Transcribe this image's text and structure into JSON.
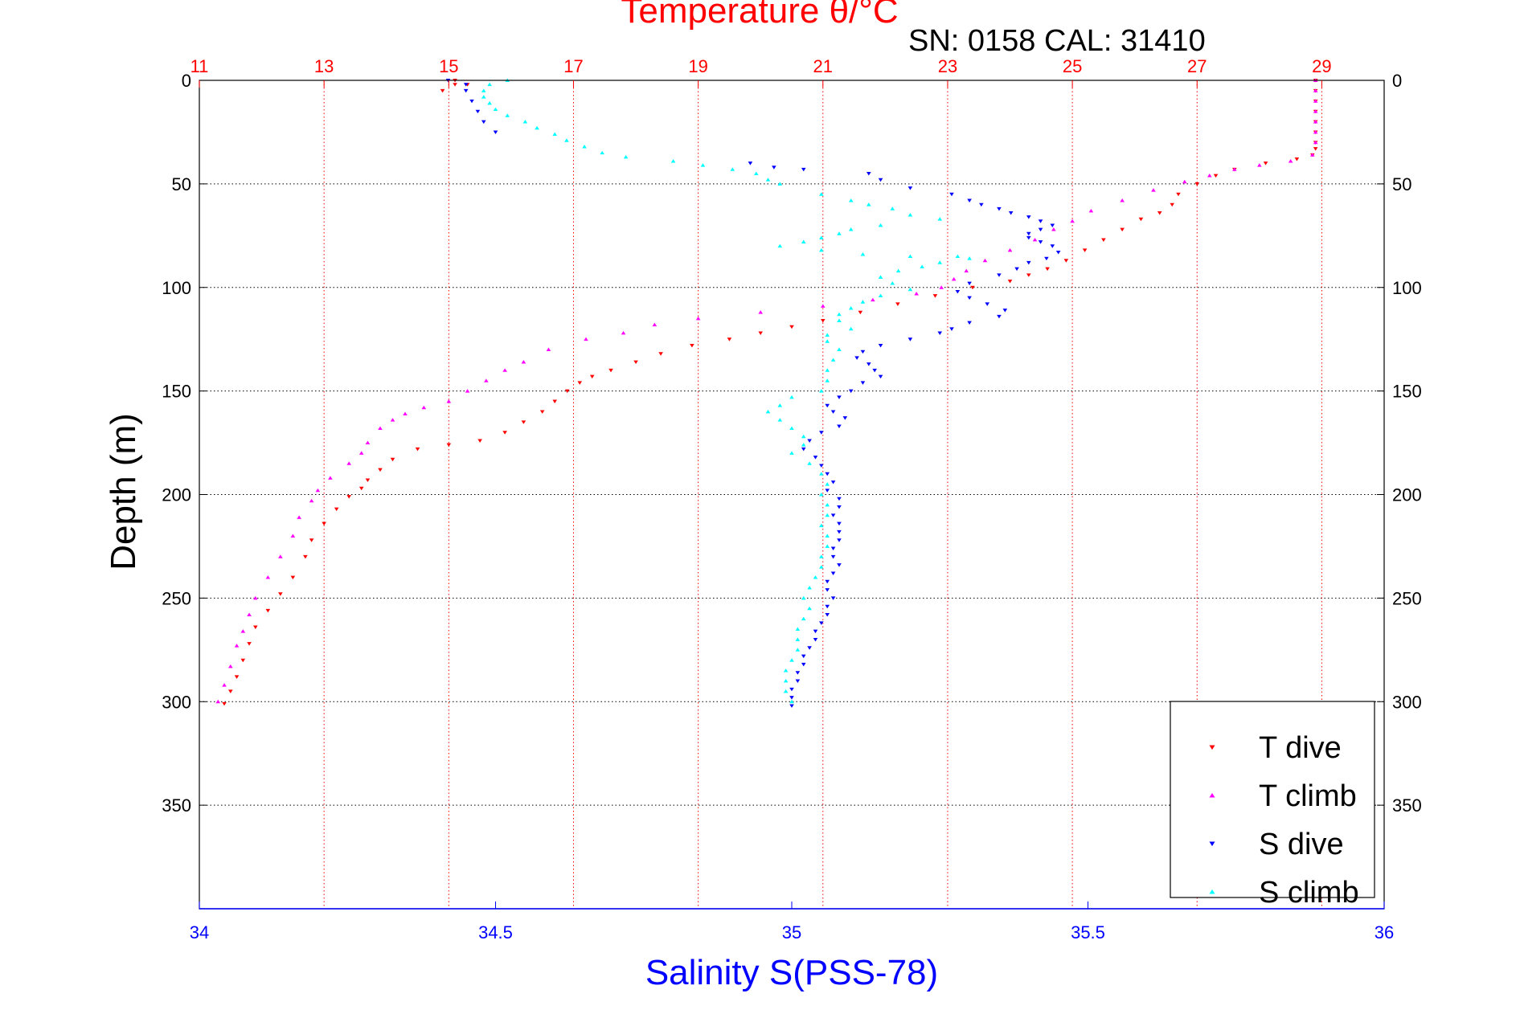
{
  "chart_data": {
    "type": "scatter",
    "title": "Temperature θ/°C",
    "subtitle": "SN: 0158  CAL: 31410",
    "ylabel": "Depth (m)",
    "xlabel_bottom": "Salinity S(PSS-78)",
    "ylim": [
      0,
      400
    ],
    "y_reversed": true,
    "y_ticks": [
      0,
      50,
      100,
      150,
      200,
      250,
      300,
      350
    ],
    "x_top": {
      "range": [
        11,
        30
      ],
      "ticks": [
        11,
        13,
        15,
        17,
        19,
        21,
        23,
        25,
        27,
        29
      ],
      "color": "#ff0000"
    },
    "x_bottom": {
      "range": [
        34,
        36
      ],
      "ticks": [
        34,
        34.5,
        35,
        35.5,
        36
      ],
      "color": "#0000ff"
    },
    "grid": true,
    "legend_position": "bottom-right",
    "series": [
      {
        "name": "T dive",
        "axis": "top",
        "color": "#ff0000",
        "marker": "triangle-down",
        "points": [
          [
            15.1,
            0
          ],
          [
            15.1,
            2
          ],
          [
            14.9,
            5
          ],
          [
            15.3,
            2
          ],
          [
            28.9,
            0
          ],
          [
            28.9,
            5
          ],
          [
            28.9,
            10
          ],
          [
            28.9,
            15
          ],
          [
            28.9,
            20
          ],
          [
            28.9,
            25
          ],
          [
            28.9,
            30
          ],
          [
            28.9,
            33
          ],
          [
            28.85,
            36
          ],
          [
            28.6,
            38
          ],
          [
            28.1,
            40
          ],
          [
            27.6,
            43
          ],
          [
            27.3,
            46
          ],
          [
            27.0,
            50
          ],
          [
            26.7,
            55
          ],
          [
            26.6,
            60
          ],
          [
            26.4,
            64
          ],
          [
            26.1,
            67
          ],
          [
            25.8,
            72
          ],
          [
            25.5,
            77
          ],
          [
            25.2,
            82
          ],
          [
            24.9,
            87
          ],
          [
            24.6,
            91
          ],
          [
            24.3,
            94
          ],
          [
            24.0,
            97
          ],
          [
            23.4,
            100
          ],
          [
            22.8,
            104
          ],
          [
            22.2,
            108
          ],
          [
            21.6,
            112
          ],
          [
            21.0,
            116
          ],
          [
            20.5,
            119
          ],
          [
            20.0,
            122
          ],
          [
            19.5,
            125
          ],
          [
            18.9,
            128
          ],
          [
            18.4,
            132
          ],
          [
            18.0,
            136
          ],
          [
            17.6,
            140
          ],
          [
            17.3,
            143
          ],
          [
            17.1,
            146
          ],
          [
            16.9,
            150
          ],
          [
            16.7,
            155
          ],
          [
            16.5,
            160
          ],
          [
            16.2,
            165
          ],
          [
            15.9,
            170
          ],
          [
            15.5,
            174
          ],
          [
            15.0,
            176
          ],
          [
            14.5,
            178
          ],
          [
            14.1,
            183
          ],
          [
            13.9,
            188
          ],
          [
            13.7,
            193
          ],
          [
            13.6,
            197
          ],
          [
            13.4,
            201
          ],
          [
            13.2,
            207
          ],
          [
            13.0,
            214
          ],
          [
            12.8,
            222
          ],
          [
            12.7,
            230
          ],
          [
            12.5,
            240
          ],
          [
            12.3,
            248
          ],
          [
            12.1,
            256
          ],
          [
            11.9,
            264
          ],
          [
            11.8,
            272
          ],
          [
            11.7,
            280
          ],
          [
            11.6,
            288
          ],
          [
            11.5,
            295
          ],
          [
            11.4,
            301
          ]
        ]
      },
      {
        "name": "T climb",
        "axis": "top",
        "color": "#ff00ff",
        "marker": "triangle-up",
        "points": [
          [
            28.9,
            0
          ],
          [
            28.9,
            5
          ],
          [
            28.9,
            10
          ],
          [
            28.9,
            15
          ],
          [
            28.9,
            20
          ],
          [
            28.9,
            25
          ],
          [
            28.9,
            30
          ],
          [
            28.85,
            36
          ],
          [
            28.5,
            39
          ],
          [
            28.0,
            41
          ],
          [
            27.6,
            43
          ],
          [
            27.2,
            46
          ],
          [
            26.8,
            49
          ],
          [
            26.3,
            53
          ],
          [
            25.8,
            58
          ],
          [
            25.3,
            63
          ],
          [
            25.0,
            68
          ],
          [
            24.7,
            72
          ],
          [
            24.4,
            77
          ],
          [
            24.0,
            82
          ],
          [
            23.6,
            87
          ],
          [
            23.3,
            92
          ],
          [
            23.1,
            96
          ],
          [
            22.9,
            100
          ],
          [
            22.5,
            103
          ],
          [
            21.8,
            106
          ],
          [
            21.0,
            109
          ],
          [
            20.0,
            112
          ],
          [
            19.0,
            115
          ],
          [
            18.3,
            118
          ],
          [
            17.8,
            122
          ],
          [
            17.2,
            125
          ],
          [
            16.6,
            130
          ],
          [
            16.2,
            136
          ],
          [
            15.9,
            140
          ],
          [
            15.6,
            145
          ],
          [
            15.3,
            150
          ],
          [
            15.0,
            155
          ],
          [
            14.6,
            158
          ],
          [
            14.3,
            161
          ],
          [
            14.1,
            164
          ],
          [
            13.9,
            168
          ],
          [
            13.7,
            175
          ],
          [
            13.6,
            180
          ],
          [
            13.4,
            185
          ],
          [
            13.1,
            192
          ],
          [
            12.9,
            198
          ],
          [
            12.8,
            203
          ],
          [
            12.6,
            211
          ],
          [
            12.5,
            220
          ],
          [
            12.3,
            230
          ],
          [
            12.1,
            240
          ],
          [
            11.9,
            250
          ],
          [
            11.8,
            258
          ],
          [
            11.7,
            266
          ],
          [
            11.6,
            273
          ],
          [
            11.5,
            283
          ],
          [
            11.4,
            292
          ],
          [
            11.3,
            300
          ]
        ]
      },
      {
        "name": "S dive",
        "axis": "bottom",
        "color": "#0000ff",
        "marker": "triangle-down",
        "points": [
          [
            34.42,
            0
          ],
          [
            34.45,
            2
          ],
          [
            34.45,
            5
          ],
          [
            34.46,
            10
          ],
          [
            34.47,
            15
          ],
          [
            34.48,
            20
          ],
          [
            34.5,
            25
          ],
          [
            34.93,
            40
          ],
          [
            34.97,
            42
          ],
          [
            35.02,
            43
          ],
          [
            35.13,
            45
          ],
          [
            35.15,
            48
          ],
          [
            35.2,
            52
          ],
          [
            35.27,
            55
          ],
          [
            35.3,
            58
          ],
          [
            35.32,
            60
          ],
          [
            35.35,
            62
          ],
          [
            35.37,
            64
          ],
          [
            35.4,
            66
          ],
          [
            35.42,
            68
          ],
          [
            35.44,
            70
          ],
          [
            35.42,
            72
          ],
          [
            35.4,
            74
          ],
          [
            35.4,
            76
          ],
          [
            35.42,
            78
          ],
          [
            35.44,
            80
          ],
          [
            35.45,
            83
          ],
          [
            35.43,
            86
          ],
          [
            35.4,
            88
          ],
          [
            35.38,
            91
          ],
          [
            35.35,
            94
          ],
          [
            35.3,
            98
          ],
          [
            35.28,
            102
          ],
          [
            35.3,
            105
          ],
          [
            35.33,
            108
          ],
          [
            35.36,
            111
          ],
          [
            35.35,
            114
          ],
          [
            35.3,
            117
          ],
          [
            35.27,
            120
          ],
          [
            35.25,
            122
          ],
          [
            35.2,
            125
          ],
          [
            35.15,
            128
          ],
          [
            35.12,
            131
          ],
          [
            35.11,
            134
          ],
          [
            35.13,
            137
          ],
          [
            35.14,
            140
          ],
          [
            35.15,
            143
          ],
          [
            35.12,
            146
          ],
          [
            35.1,
            150
          ],
          [
            35.08,
            153
          ],
          [
            35.06,
            157
          ],
          [
            35.07,
            160
          ],
          [
            35.09,
            163
          ],
          [
            35.08,
            167
          ],
          [
            35.05,
            170
          ],
          [
            35.03,
            174
          ],
          [
            35.02,
            178
          ],
          [
            35.04,
            182
          ],
          [
            35.05,
            186
          ],
          [
            35.06,
            190
          ],
          [
            35.07,
            194
          ],
          [
            35.06,
            198
          ],
          [
            35.08,
            202
          ],
          [
            35.08,
            206
          ],
          [
            35.07,
            210
          ],
          [
            35.08,
            214
          ],
          [
            35.08,
            218
          ],
          [
            35.08,
            222
          ],
          [
            35.07,
            226
          ],
          [
            35.07,
            230
          ],
          [
            35.08,
            234
          ],
          [
            35.07,
            238
          ],
          [
            35.06,
            242
          ],
          [
            35.06,
            246
          ],
          [
            35.07,
            250
          ],
          [
            35.06,
            254
          ],
          [
            35.06,
            258
          ],
          [
            35.05,
            262
          ],
          [
            35.04,
            266
          ],
          [
            35.04,
            270
          ],
          [
            35.03,
            274
          ],
          [
            35.02,
            278
          ],
          [
            35.02,
            282
          ],
          [
            35.01,
            286
          ],
          [
            35.01,
            290
          ],
          [
            35.0,
            294
          ],
          [
            35.0,
            298
          ],
          [
            35.0,
            302
          ]
        ]
      },
      {
        "name": "S climb",
        "axis": "bottom",
        "color": "#00ffff",
        "marker": "triangle-up",
        "points": [
          [
            34.52,
            0
          ],
          [
            34.49,
            2
          ],
          [
            34.48,
            5
          ],
          [
            34.48,
            8
          ],
          [
            34.49,
            11
          ],
          [
            34.5,
            14
          ],
          [
            34.52,
            17
          ],
          [
            34.55,
            20
          ],
          [
            34.57,
            23
          ],
          [
            34.6,
            26
          ],
          [
            34.62,
            29
          ],
          [
            34.65,
            32
          ],
          [
            34.68,
            35
          ],
          [
            34.72,
            37
          ],
          [
            34.8,
            39
          ],
          [
            34.85,
            41
          ],
          [
            34.9,
            43
          ],
          [
            34.94,
            45
          ],
          [
            34.96,
            48
          ],
          [
            34.98,
            50
          ],
          [
            35.05,
            55
          ],
          [
            35.1,
            58
          ],
          [
            35.13,
            60
          ],
          [
            35.17,
            62
          ],
          [
            35.2,
            65
          ],
          [
            35.25,
            67
          ],
          [
            35.15,
            70
          ],
          [
            35.1,
            72
          ],
          [
            35.08,
            74
          ],
          [
            35.05,
            76
          ],
          [
            35.02,
            78
          ],
          [
            34.98,
            80
          ],
          [
            35.05,
            82
          ],
          [
            35.12,
            84
          ],
          [
            35.2,
            85
          ],
          [
            35.28,
            85
          ],
          [
            35.3,
            86
          ],
          [
            35.25,
            88
          ],
          [
            35.22,
            90
          ],
          [
            35.18,
            92
          ],
          [
            35.15,
            95
          ],
          [
            35.17,
            98
          ],
          [
            35.2,
            101
          ],
          [
            35.15,
            104
          ],
          [
            35.12,
            107
          ],
          [
            35.1,
            110
          ],
          [
            35.08,
            113
          ],
          [
            35.08,
            116
          ],
          [
            35.1,
            120
          ],
          [
            35.06,
            123
          ],
          [
            35.06,
            126
          ],
          [
            35.08,
            130
          ],
          [
            35.07,
            135
          ],
          [
            35.06,
            140
          ],
          [
            35.06,
            145
          ],
          [
            35.05,
            150
          ],
          [
            35.0,
            153
          ],
          [
            34.98,
            157
          ],
          [
            34.96,
            160
          ],
          [
            34.98,
            164
          ],
          [
            35.0,
            168
          ],
          [
            35.02,
            172
          ],
          [
            35.02,
            176
          ],
          [
            35.0,
            180
          ],
          [
            35.03,
            185
          ],
          [
            35.05,
            190
          ],
          [
            35.06,
            195
          ],
          [
            35.05,
            200
          ],
          [
            35.06,
            205
          ],
          [
            35.06,
            210
          ],
          [
            35.05,
            215
          ],
          [
            35.06,
            220
          ],
          [
            35.06,
            225
          ],
          [
            35.05,
            230
          ],
          [
            35.05,
            235
          ],
          [
            35.04,
            240
          ],
          [
            35.03,
            245
          ],
          [
            35.02,
            250
          ],
          [
            35.03,
            255
          ],
          [
            35.02,
            260
          ],
          [
            35.01,
            265
          ],
          [
            35.01,
            270
          ],
          [
            35.01,
            275
          ],
          [
            35.0,
            280
          ],
          [
            34.99,
            285
          ],
          [
            34.99,
            290
          ],
          [
            34.99,
            295
          ],
          [
            35.0,
            300
          ]
        ]
      }
    ]
  }
}
